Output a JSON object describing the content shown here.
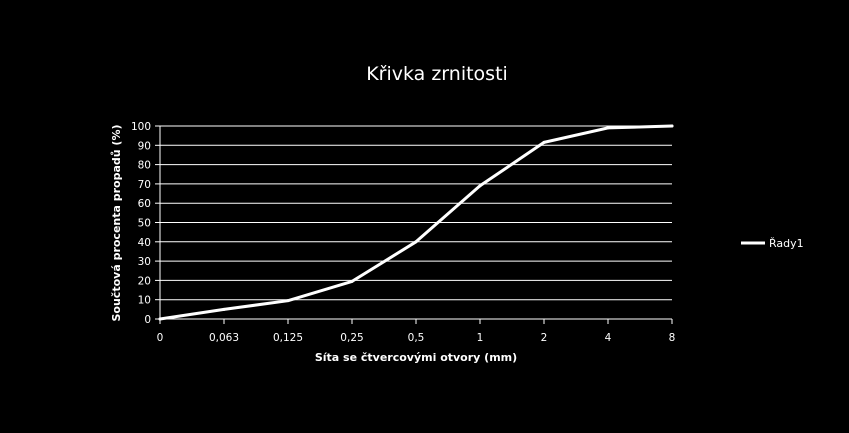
{
  "chart_data": {
    "type": "line",
    "title": "Křivka zrnitosti",
    "xlabel": "Síta se čtvercovými otvory (mm)",
    "ylabel": "Součtová procenta propadů (%)",
    "categories": [
      "0",
      "0,063",
      "0,125",
      "0,25",
      "0,5",
      "1",
      "2",
      "4",
      "8"
    ],
    "ylim": [
      0,
      100
    ],
    "yticks": [
      "0",
      "10",
      "20",
      "30",
      "40",
      "50",
      "60",
      "70",
      "80",
      "90",
      "100"
    ],
    "grid": true,
    "legend_position": "right",
    "series": [
      {
        "name": "Řady1",
        "values": [
          0,
          5,
          9.5,
          19.5,
          40,
          69,
          91.5,
          99,
          100
        ]
      }
    ],
    "colors": {
      "background": "#000000",
      "line": "#ffffff",
      "grid": "#ffffff",
      "text": "#ffffff"
    }
  }
}
